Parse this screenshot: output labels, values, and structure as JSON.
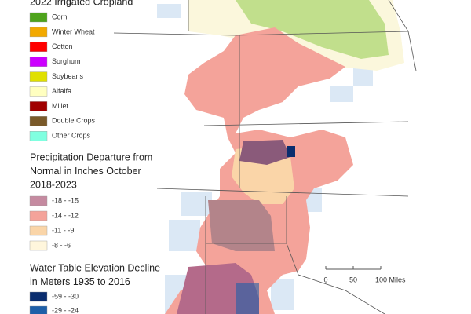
{
  "legend": {
    "cropland": {
      "title": "2022 Irrigated Cropland",
      "items": [
        {
          "label": "Corn",
          "color": "#4ea31c"
        },
        {
          "label": "Winter Wheat",
          "color": "#f2a900"
        },
        {
          "label": "Cotton",
          "color": "#ff0000"
        },
        {
          "label": "Sorghum",
          "color": "#cc00ff"
        },
        {
          "label": "Soybeans",
          "color": "#e0e000"
        },
        {
          "label": "Alfalfa",
          "color": "#ffffc0"
        },
        {
          "label": "Millet",
          "color": "#a00000"
        },
        {
          "label": "Double Crops",
          "color": "#7a5a2a"
        },
        {
          "label": "Other Crops",
          "color": "#80ffe0"
        }
      ]
    },
    "precipitation": {
      "title_lines": [
        "Precipitation Departure from",
        "Normal in Inches October",
        "2018-2023"
      ],
      "items": [
        {
          "label": "-18 - -15",
          "color": "#c58aa0"
        },
        {
          "label": "-14 - -12",
          "color": "#f4a39a"
        },
        {
          "label": "-11 - -9",
          "color": "#fad5a8"
        },
        {
          "label": "-8 - -6",
          "color": "#fff6dc"
        }
      ]
    },
    "water_table": {
      "title_lines": [
        "Water Table Elevation Decline",
        "in Meters 1935 to 2016"
      ],
      "items": [
        {
          "label": "-59 - -30",
          "color": "#0a2d6e"
        },
        {
          "label": "-29 - -24",
          "color": "#1e5fa8"
        }
      ]
    }
  },
  "scale_bar": {
    "labels": [
      "0",
      "50",
      "100 Miles"
    ]
  }
}
